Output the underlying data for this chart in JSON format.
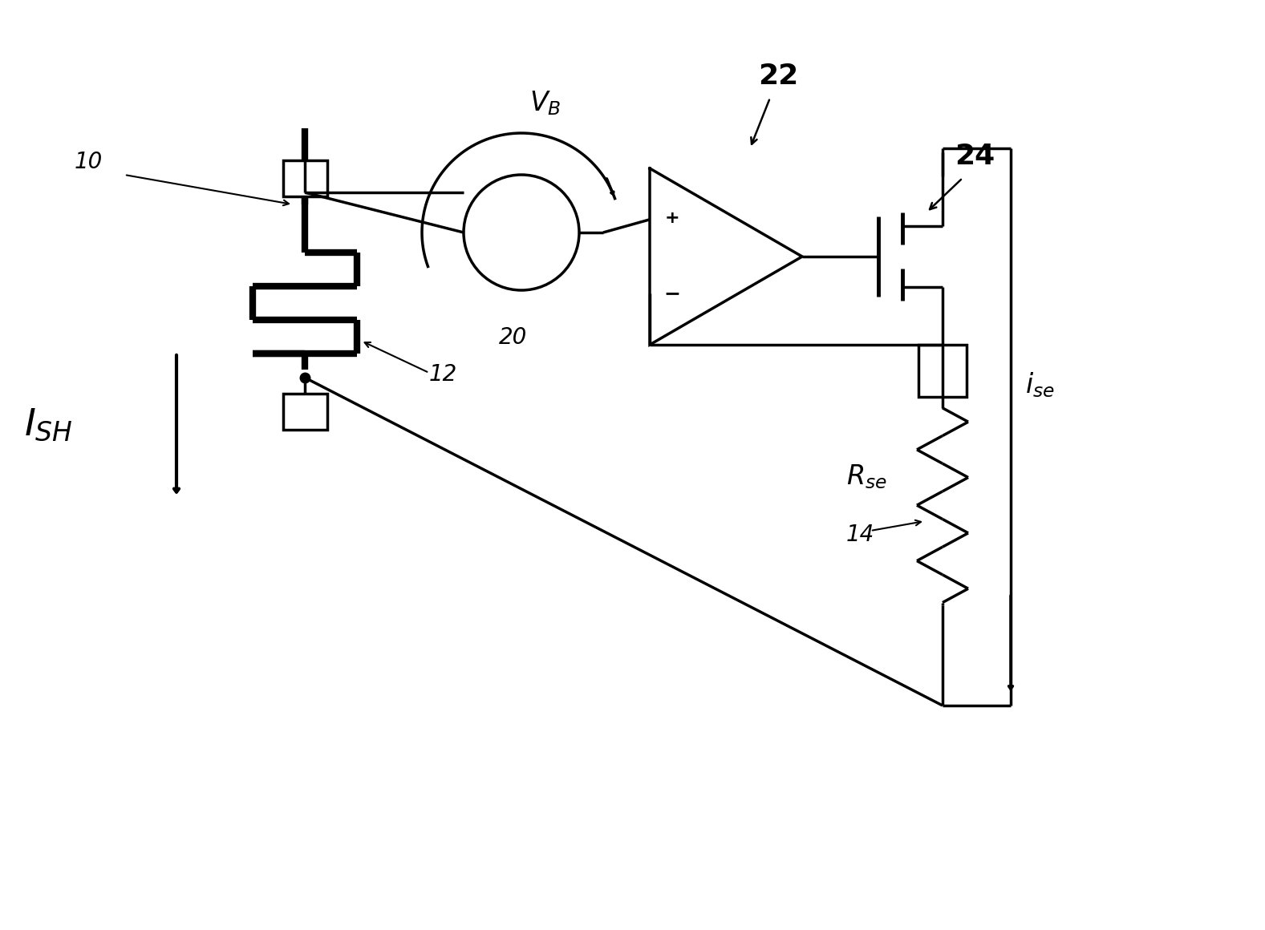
{
  "bg_color": "#ffffff",
  "lc": "#000000",
  "lw": 2.5,
  "tlw": 6.0,
  "fig_w": 15.77,
  "fig_h": 11.6,
  "xlim": [
    0,
    15.77
  ],
  "ylim": [
    0,
    11.6
  ]
}
